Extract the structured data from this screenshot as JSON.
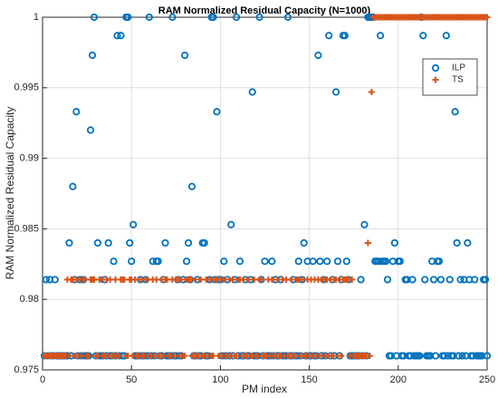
{
  "chart_data": {
    "type": "scatter",
    "title": "RAM Normalized Residual Capacity (N=1000)",
    "xlabel": "PM index",
    "ylabel": "RAM Normalized Residual Capacity",
    "xlim": [
      0,
      250
    ],
    "xticks": [
      0,
      50,
      100,
      150,
      200,
      250
    ],
    "ylim": [
      0.975,
      1
    ],
    "yticks": [
      0.975,
      0.98,
      0.985,
      0.99,
      0.995,
      1
    ],
    "grid": true,
    "legend": "northeast",
    "x": [
      1,
      2,
      3,
      4,
      5,
      6,
      7,
      8,
      9,
      10,
      11,
      12,
      13,
      14,
      15,
      16,
      17,
      18,
      19,
      20,
      21,
      22,
      23,
      24,
      25,
      26,
      27,
      28,
      29,
      30,
      31,
      32,
      33,
      34,
      35,
      36,
      37,
      38,
      39,
      40,
      41,
      42,
      43,
      44,
      45,
      46,
      47,
      48,
      49,
      50,
      51,
      52,
      53,
      54,
      55,
      56,
      57,
      58,
      59,
      60,
      61,
      62,
      63,
      64,
      65,
      66,
      67,
      68,
      69,
      70,
      71,
      72,
      73,
      74,
      75,
      76,
      77,
      78,
      79,
      80,
      81,
      82,
      83,
      84,
      85,
      86,
      87,
      88,
      89,
      90,
      91,
      92,
      93,
      94,
      95,
      96,
      97,
      98,
      99,
      100,
      101,
      102,
      103,
      104,
      105,
      106,
      107,
      108,
      109,
      110,
      111,
      112,
      113,
      114,
      115,
      116,
      117,
      118,
      119,
      120,
      121,
      122,
      123,
      124,
      125,
      126,
      127,
      128,
      129,
      130,
      131,
      132,
      133,
      134,
      135,
      136,
      137,
      138,
      139,
      140,
      141,
      142,
      143,
      144,
      145,
      146,
      147,
      148,
      149,
      150,
      151,
      152,
      153,
      154,
      155,
      156,
      157,
      158,
      159,
      160,
      161,
      162,
      163,
      164,
      165,
      166,
      167,
      168,
      169,
      170,
      171,
      172,
      173,
      174,
      175,
      176,
      177,
      178,
      179,
      180,
      181,
      182,
      183,
      184,
      185,
      186,
      187,
      188,
      189,
      190,
      191,
      192,
      193,
      194,
      195,
      196,
      197,
      198,
      199,
      200,
      201,
      202,
      203,
      204,
      205,
      206,
      207,
      208,
      209,
      210,
      211,
      212,
      213,
      214,
      215,
      216,
      217,
      218,
      219,
      220,
      221,
      222,
      223,
      224,
      225,
      226,
      227,
      228,
      229,
      230,
      231,
      232,
      233,
      234,
      235,
      236,
      237,
      238,
      239,
      240,
      241,
      242,
      243,
      244,
      245,
      246,
      247,
      248,
      249,
      250
    ],
    "series": [
      {
        "name": "ILP",
        "color": "#0072BD",
        "marker": "o",
        "values": [
          0.976,
          0.9814,
          0.976,
          0.9814,
          0.976,
          0.976,
          0.9814,
          0.976,
          0.976,
          0.976,
          0.976,
          0.976,
          0.976,
          0.976,
          0.984,
          0.976,
          0.988,
          0.9814,
          0.9933,
          0.976,
          0.9814,
          0.976,
          0.9814,
          0.976,
          0.976,
          0.976,
          0.992,
          0.9973,
          1,
          0.976,
          0.984,
          0.976,
          0.976,
          0.976,
          0.9814,
          0.976,
          0.984,
          0.976,
          0.976,
          0.9827,
          0.976,
          0.9987,
          0.976,
          0.9987,
          0.976,
          0.976,
          1,
          1,
          0.984,
          0.9827,
          0.9853,
          0.976,
          0.976,
          0.976,
          0.9814,
          0.976,
          0.976,
          0.9814,
          0.976,
          1,
          0.976,
          0.9827,
          0.976,
          0.9827,
          0.9827,
          0.976,
          0.976,
          0.9814,
          0.984,
          0.976,
          0.976,
          0.976,
          1,
          0.976,
          0.976,
          0.9814,
          0.976,
          0.976,
          0.9814,
          0.9973,
          0.9827,
          0.984,
          0.9814,
          0.988,
          0.976,
          0.976,
          0.9814,
          0.976,
          0.976,
          0.984,
          0.984,
          0.976,
          0.976,
          0.9814,
          1,
          1,
          0.9814,
          0.9933,
          0.9814,
          0.9814,
          0.976,
          0.9827,
          0.976,
          0.9814,
          0.976,
          0.9853,
          0.976,
          0.9814,
          1,
          0.976,
          0.9827,
          0.976,
          0.976,
          0.9814,
          0.976,
          0.976,
          0.9814,
          0.9947,
          0.976,
          0.976,
          0.976,
          1,
          0.9814,
          0.976,
          0.9827,
          0.976,
          0.976,
          0.976,
          0.9827,
          0.976,
          0.9814,
          0.976,
          0.976,
          0.9814,
          0.976,
          0.976,
          0.976,
          1,
          0.976,
          0.976,
          0.9814,
          0.976,
          0.976,
          0.9827,
          0.976,
          0.9814,
          0.984,
          0.976,
          0.9827,
          0.976,
          0.976,
          0.9827,
          0.976,
          0.976,
          0.9973,
          0.9827,
          0.976,
          0.9814,
          0.976,
          0.9827,
          0.9987,
          0.976,
          0.9814,
          0.976,
          0.9947,
          0.9827,
          0.976,
          0.9814,
          0.9987,
          0.9987,
          0.9827,
          0.9814,
          0.976,
          0.976,
          0.976,
          0.976,
          0.976,
          0.976,
          0.9814,
          0.976,
          0.9853,
          0.976,
          1,
          1,
          1,
          1,
          0.9827,
          0.9827,
          0.9827,
          0.9987,
          0.9827,
          0.9827,
          0.9827,
          0.9814,
          0.976,
          0.976,
          0.9827,
          0.984,
          0.976,
          0.9827,
          0.9827,
          0.976,
          0.976,
          0.9814,
          0.9814,
          0.976,
          0.976,
          0.9814,
          0.976,
          0.976,
          0.976,
          0.976,
          1,
          0.9987,
          0.9814,
          0.976,
          0.976,
          0.976,
          0.9827,
          0.9814,
          0.976,
          0.9827,
          0.9827,
          0.9814,
          0.976,
          0.976,
          0.9987,
          0.976,
          0.9814,
          0.976,
          0.976,
          0.9933,
          0.984,
          0.976,
          0.9814,
          0.976,
          0.9814,
          0.976,
          0.984,
          0.9814,
          0.976,
          0.976,
          0.9814,
          0.976,
          0.976,
          0.976,
          0.976,
          0.9814,
          0.9814,
          0.976
        ]
      },
      {
        "name": "TS",
        "color": "#D95319",
        "marker": "+",
        "values": [
          0.976,
          0.976,
          0.976,
          0.976,
          0.976,
          0.976,
          0.976,
          0.976,
          0.976,
          0.976,
          0.976,
          0.976,
          0.976,
          0.9814,
          0.976,
          0.9814,
          0.9814,
          0.976,
          0.9814,
          0.976,
          0.9814,
          0.976,
          0.9814,
          0.9814,
          0.976,
          0.976,
          0.9814,
          0.9814,
          0.9814,
          0.976,
          0.976,
          0.9814,
          0.9814,
          0.976,
          0.976,
          0.9814,
          0.976,
          0.9814,
          0.976,
          0.976,
          0.9814,
          0.976,
          0.976,
          0.9814,
          0.9814,
          0.9814,
          0.976,
          0.976,
          0.9814,
          0.9814,
          0.976,
          0.9814,
          0.976,
          0.976,
          0.9814,
          0.976,
          0.976,
          0.9814,
          0.9814,
          0.976,
          0.976,
          0.9814,
          0.976,
          0.9814,
          0.976,
          0.976,
          0.9814,
          0.976,
          0.9814,
          0.9814,
          0.976,
          0.976,
          0.9814,
          0.976,
          0.9814,
          0.9814,
          0.976,
          0.9814,
          0.976,
          0.976,
          0.9814,
          0.9814,
          0.9814,
          0.976,
          0.976,
          0.9814,
          0.976,
          0.976,
          0.9814,
          0.976,
          0.976,
          0.9814,
          0.976,
          0.9814,
          0.976,
          0.976,
          0.9814,
          0.9814,
          0.976,
          0.9814,
          0.976,
          0.9814,
          0.976,
          0.976,
          0.9814,
          0.976,
          0.9814,
          0.976,
          0.976,
          0.9814,
          0.9814,
          0.976,
          0.9814,
          0.976,
          0.976,
          0.9814,
          0.976,
          0.976,
          0.9814,
          0.976,
          0.976,
          0.9814,
          0.9814,
          0.976,
          0.976,
          0.976,
          0.9814,
          0.976,
          0.9814,
          0.976,
          0.976,
          0.9814,
          0.976,
          0.976,
          0.9814,
          0.976,
          0.9814,
          0.976,
          0.976,
          0.9814,
          0.976,
          0.976,
          0.9814,
          0.9814,
          0.976,
          0.9814,
          0.976,
          0.976,
          0.9814,
          0.976,
          0.9814,
          0.976,
          0.9814,
          0.976,
          0.9814,
          0.976,
          0.9814,
          0.9814,
          0.976,
          0.9814,
          0.976,
          0.9814,
          0.976,
          0.9814,
          0.9814,
          0.976,
          0.9814,
          0.976,
          0.9814,
          0.9814,
          0.9814,
          0.9814,
          0.976,
          0.9814,
          0.976,
          0.976,
          0.976,
          0.976,
          0.976,
          0.976,
          0.976,
          0.976,
          0.984,
          0.976,
          0.9947,
          1,
          1,
          1,
          1,
          1,
          1,
          1,
          1,
          1,
          1,
          1,
          1,
          1,
          1,
          1,
          1,
          1,
          1,
          1,
          1,
          1,
          1,
          1,
          1,
          1,
          1,
          1,
          1,
          1,
          1,
          1,
          1,
          1,
          1,
          1,
          1,
          1,
          1,
          1,
          1,
          1,
          1,
          1,
          1,
          1,
          1,
          1,
          1,
          1,
          1,
          1,
          1,
          1,
          1,
          1,
          1,
          1,
          1,
          1,
          1,
          1,
          1,
          1,
          1,
          1
        ]
      }
    ]
  }
}
